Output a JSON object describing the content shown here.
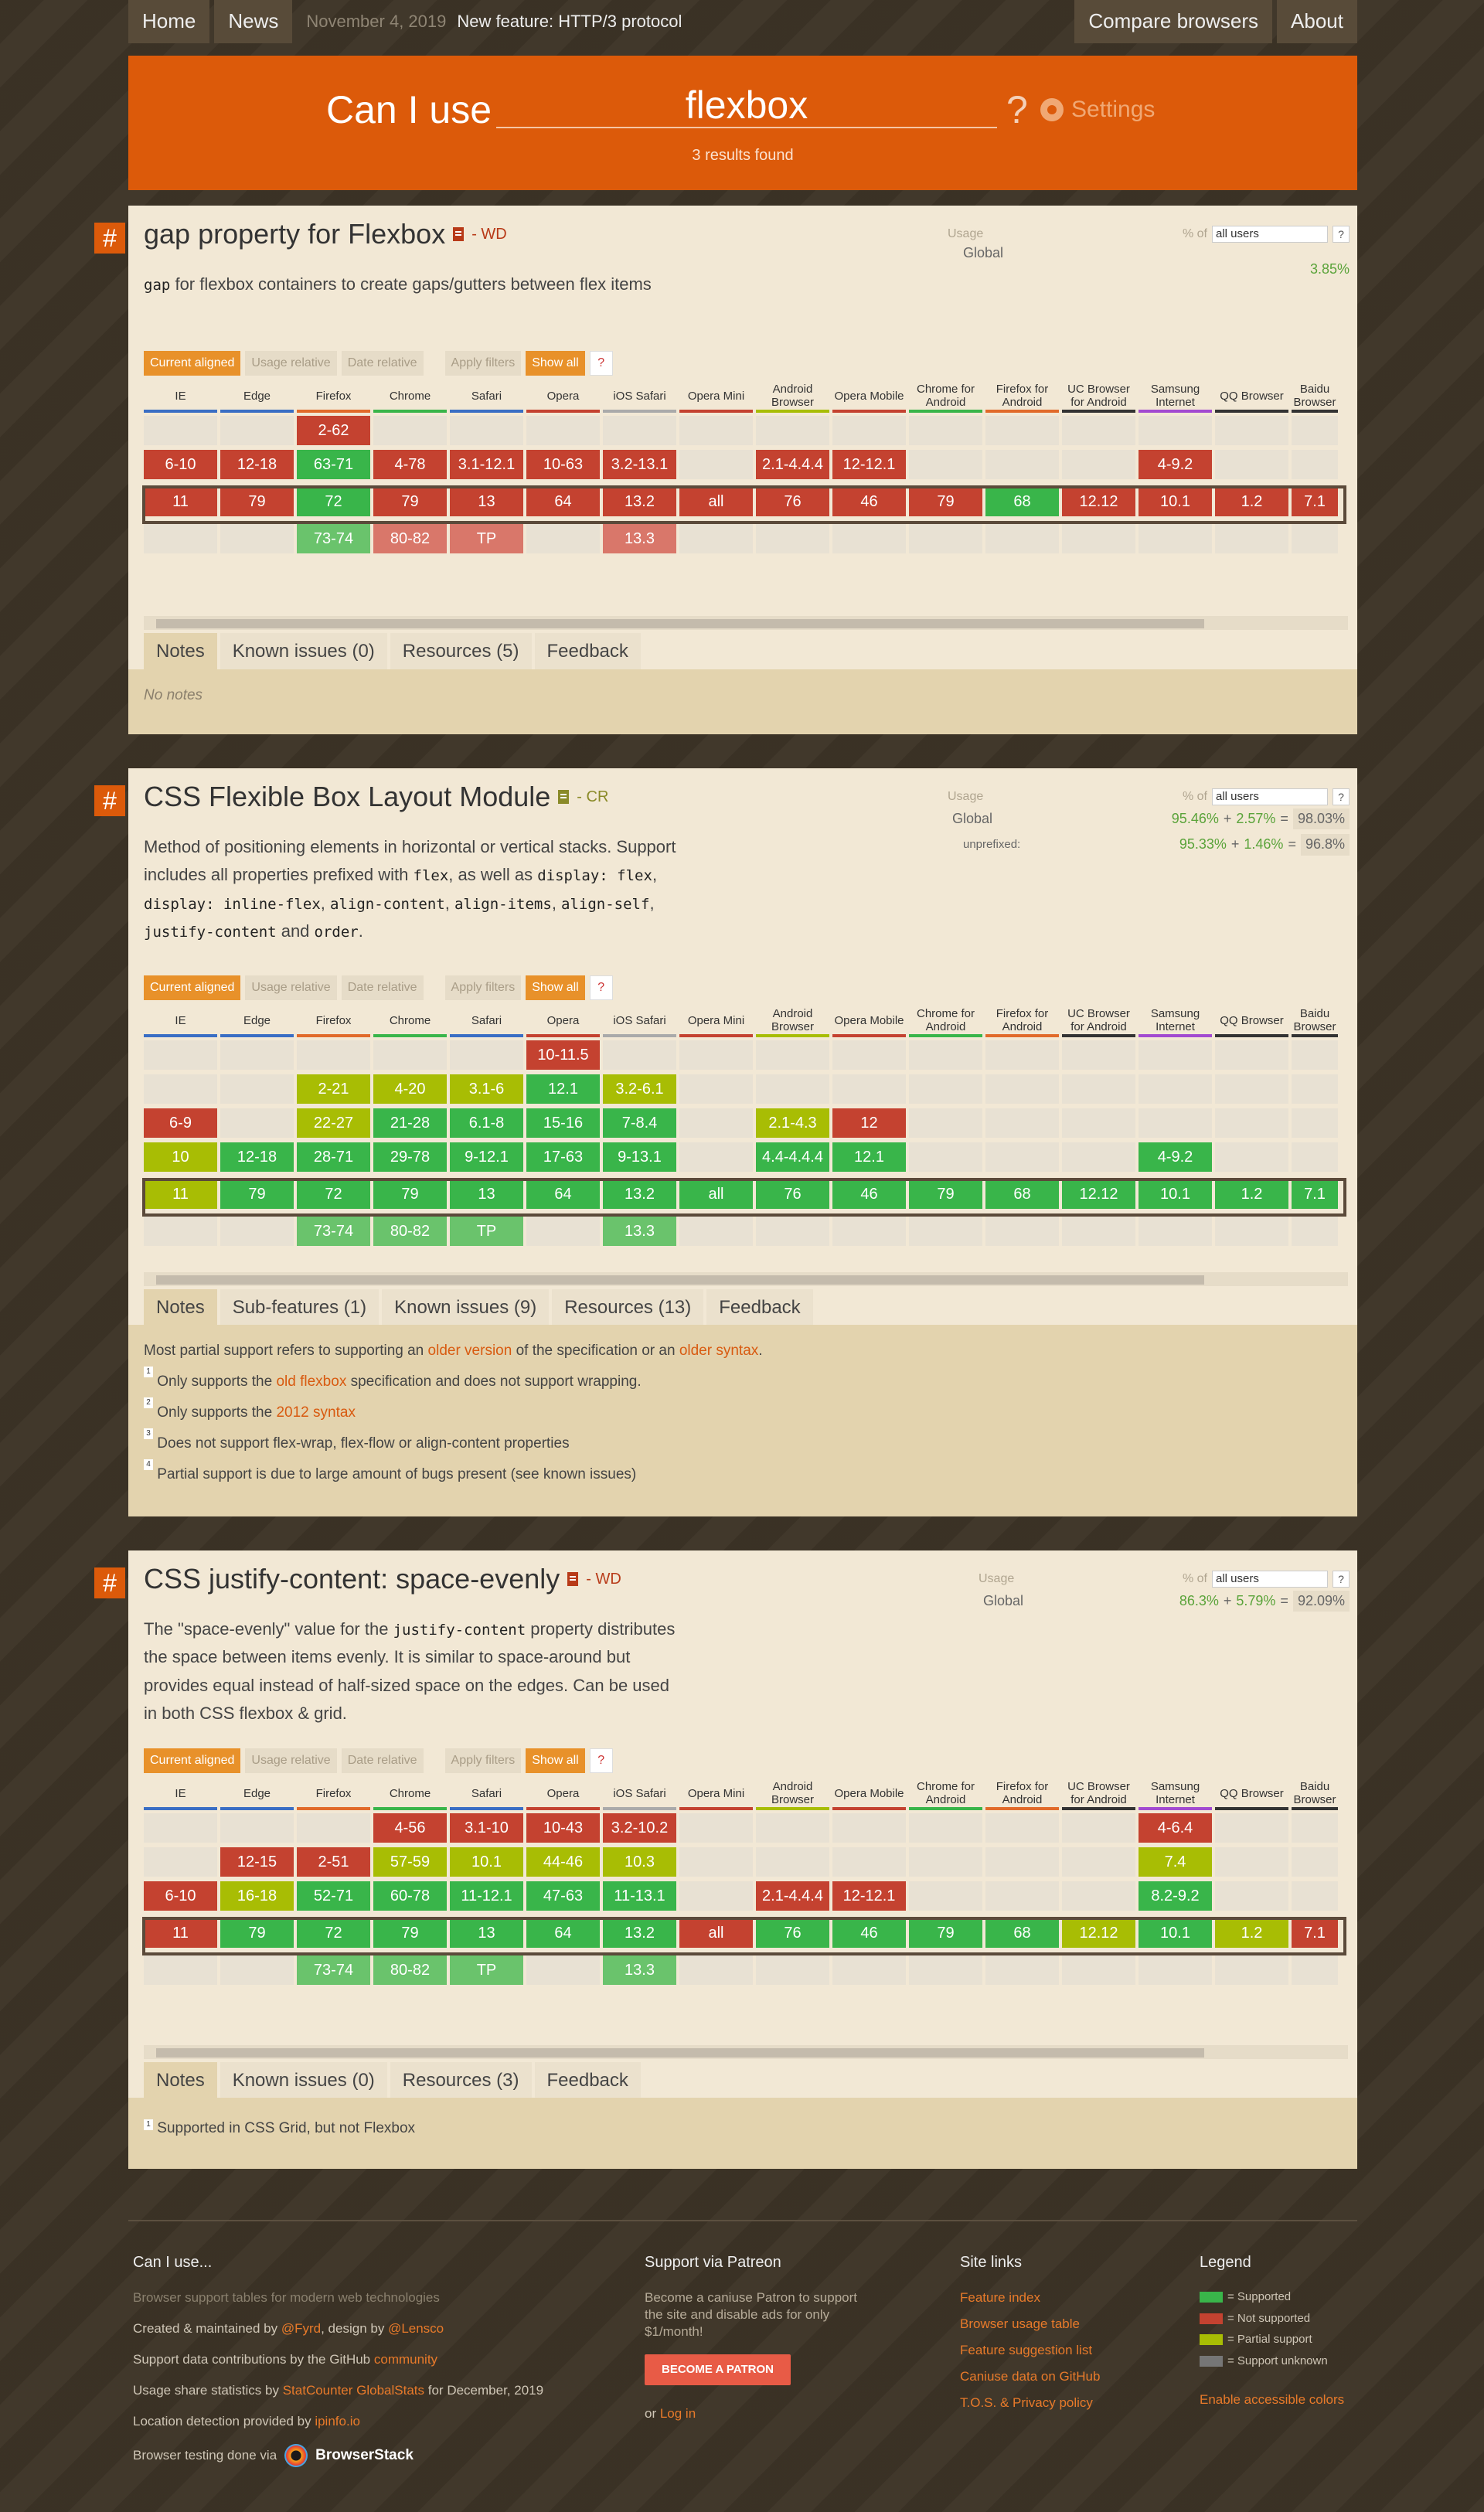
{
  "nav": {
    "home": "Home",
    "news": "News",
    "date": "November 4, 2019",
    "news_text": "New feature: HTTP/3 protocol",
    "compare": "Compare browsers",
    "about": "About"
  },
  "search": {
    "prefix": "Can I use",
    "value": "flexbox",
    "suffix": "?",
    "settings": "Settings",
    "results": "3 results found"
  },
  "ui": {
    "hash": "#",
    "usage": "Usage",
    "pct_of": "% of",
    "users_select": "all users",
    "help": "?",
    "global": "Global",
    "unprefixed": "unprefixed:",
    "plus": "+",
    "equals": "=",
    "filters": {
      "current": "Current aligned",
      "relative": "Usage relative",
      "date": "Date relative",
      "apply": "Apply filters",
      "show_all": "Show all",
      "help": "?"
    }
  },
  "browsers": [
    "IE",
    "Edge",
    "Firefox",
    "Chrome",
    "Safari",
    "Opera",
    "iOS Safari",
    "Opera Mini",
    "Android Browser",
    "Opera Mobile",
    "Chrome for Android",
    "Firefox for Android",
    "UC Browser for Android",
    "Samsung Internet",
    "QQ Browser",
    "Baidu Browser"
  ],
  "colors": {
    "supported": "#39b54a",
    "not_supported": "#c44230",
    "partial": "#a8bd04",
    "unknown": "#767676",
    "accent": "#dc5a0a"
  },
  "features": [
    {
      "title": "gap property for Flexbox",
      "status": "- WD",
      "desc_code": "gap",
      "desc": "for flexbox containers to create gaps/gutters between flex items",
      "global_pct": "3.85%",
      "tabs": [
        "Notes",
        "Known issues (0)",
        "Resources (5)",
        "Feedback"
      ],
      "notes": "No notes"
    },
    {
      "title": "CSS Flexible Box Layout Module",
      "status": "- CR",
      "desc_parts": [
        "Method of positioning elements in horizontal or vertical stacks. Support includes all properties prefixed with ",
        "flex",
        ", as well as ",
        "display: flex",
        ", ",
        "display: inline-flex",
        ", ",
        "align-content",
        ", ",
        "align-items",
        ", ",
        "align-self",
        ", ",
        "justify-content",
        " and ",
        "order",
        "."
      ],
      "global": {
        "full": "95.46%",
        "partial": "2.57%",
        "total": "98.03%"
      },
      "unprefixed": {
        "full": "95.33%",
        "partial": "1.46%",
        "total": "96.8%"
      },
      "tabs": [
        "Notes",
        "Sub-features (1)",
        "Known issues (9)",
        "Resources (13)",
        "Feedback"
      ],
      "notes_main": [
        "Most partial support refers to supporting an ",
        "older version",
        " of the specification or an ",
        "older syntax",
        "."
      ],
      "notes_list": [
        {
          "n": "1",
          "a": "Only supports the ",
          "link": "old flexbox",
          "b": " specification and does not support wrapping."
        },
        {
          "n": "2",
          "a": "Only supports the ",
          "link": "2012 syntax",
          "b": ""
        },
        {
          "n": "3",
          "a": "Does not support flex-wrap, flex-flow or align-content properties",
          "link": "",
          "b": ""
        },
        {
          "n": "4",
          "a": "Partial support is due to large amount of bugs present (see known issues)",
          "link": "",
          "b": ""
        }
      ]
    },
    {
      "title": "CSS justify-content: space-evenly",
      "status": "- WD",
      "desc_parts": [
        "The \"space-evenly\" value for the ",
        "justify-content",
        " property distributes the space between items evenly. It is similar to space-around but provides equal instead of half-sized space on the edges. Can be used in both CSS flexbox & grid."
      ],
      "global": {
        "full": "86.3%",
        "partial": "5.79%",
        "total": "92.09%"
      },
      "tabs": [
        "Notes",
        "Known issues (0)",
        "Resources (3)",
        "Feedback"
      ],
      "note_1": {
        "n": "1",
        "text": "Supported in CSS Grid, but not Flexbox"
      }
    }
  ],
  "grid1": [
    [
      [
        "",
        "e"
      ],
      [
        "6-10",
        "n"
      ],
      [
        "11",
        "n"
      ],
      [
        "",
        "e"
      ]
    ],
    [
      [
        "",
        "e"
      ],
      [
        "12-18",
        "n"
      ],
      [
        "79",
        "n"
      ],
      [
        "",
        "e"
      ]
    ],
    [
      [
        "2-62",
        "n"
      ],
      [
        "63-71",
        "y"
      ],
      [
        "72",
        "y"
      ],
      [
        "73-74",
        "yp"
      ]
    ],
    [
      [
        "",
        "e"
      ],
      [
        "4-78",
        "n"
      ],
      [
        "79",
        "n"
      ],
      [
        "80-82",
        "np"
      ]
    ],
    [
      [
        "",
        "e"
      ],
      [
        "3.1-12.1",
        "n"
      ],
      [
        "13",
        "n"
      ],
      [
        "TP",
        "np"
      ]
    ],
    [
      [
        "",
        "e"
      ],
      [
        "10-63",
        "n"
      ],
      [
        "64",
        "n"
      ],
      [
        "",
        "e"
      ]
    ],
    [
      [
        "",
        "e"
      ],
      [
        "3.2-13.1",
        "n"
      ],
      [
        "13.2",
        "n"
      ],
      [
        "13.3",
        "np"
      ]
    ],
    [
      [
        "",
        "e"
      ],
      [
        "",
        "e"
      ],
      [
        "all",
        "n"
      ],
      [
        "",
        "e"
      ]
    ],
    [
      [
        "",
        "e"
      ],
      [
        "2.1-4.4.4",
        "n"
      ],
      [
        "76",
        "n"
      ],
      [
        "",
        "e"
      ]
    ],
    [
      [
        "",
        "e"
      ],
      [
        "12-12.1",
        "n"
      ],
      [
        "46",
        "n"
      ],
      [
        "",
        "e"
      ]
    ],
    [
      [
        "",
        "e"
      ],
      [
        "",
        "e"
      ],
      [
        "79",
        "n"
      ],
      [
        "",
        "e"
      ]
    ],
    [
      [
        "",
        "e"
      ],
      [
        "",
        "e"
      ],
      [
        "68",
        "y"
      ],
      [
        "",
        "e"
      ]
    ],
    [
      [
        "",
        "e"
      ],
      [
        "",
        "e"
      ],
      [
        "12.12",
        "n"
      ],
      [
        "",
        "e"
      ]
    ],
    [
      [
        "",
        "e"
      ],
      [
        "4-9.2",
        "n"
      ],
      [
        "10.1",
        "n"
      ],
      [
        "",
        "e"
      ]
    ],
    [
      [
        "",
        "e"
      ],
      [
        "",
        "e"
      ],
      [
        "1.2",
        "n"
      ],
      [
        "",
        "e"
      ]
    ],
    [
      [
        "",
        "e"
      ],
      [
        "",
        "e"
      ],
      [
        "7.1",
        "n"
      ],
      [
        "",
        "e"
      ]
    ]
  ],
  "grid2": [
    [
      [
        "",
        "e"
      ],
      [
        "",
        "e"
      ],
      [
        "6-9",
        "n"
      ],
      [
        "10",
        "p"
      ],
      [
        "11",
        "p"
      ],
      [
        "",
        "e"
      ]
    ],
    [
      [
        "",
        "e"
      ],
      [
        "",
        "e"
      ],
      [
        "",
        "e"
      ],
      [
        "12-18",
        "y"
      ],
      [
        "79",
        "y"
      ],
      [
        "",
        "e"
      ]
    ],
    [
      [
        "",
        "e"
      ],
      [
        "2-21",
        "p"
      ],
      [
        "22-27",
        "p"
      ],
      [
        "28-71",
        "y"
      ],
      [
        "72",
        "y"
      ],
      [
        "73-74",
        "yp"
      ]
    ],
    [
      [
        "",
        "e"
      ],
      [
        "4-20",
        "p"
      ],
      [
        "21-28",
        "y"
      ],
      [
        "29-78",
        "y"
      ],
      [
        "79",
        "y"
      ],
      [
        "80-82",
        "yp"
      ]
    ],
    [
      [
        "",
        "e"
      ],
      [
        "3.1-6",
        "p"
      ],
      [
        "6.1-8",
        "y"
      ],
      [
        "9-12.1",
        "y"
      ],
      [
        "13",
        "y"
      ],
      [
        "TP",
        "yp"
      ]
    ],
    [
      [
        "10-11.5",
        "n"
      ],
      [
        "12.1",
        "y"
      ],
      [
        "15-16",
        "y"
      ],
      [
        "17-63",
        "y"
      ],
      [
        "64",
        "y"
      ],
      [
        "",
        "e"
      ]
    ],
    [
      [
        "",
        "e"
      ],
      [
        "3.2-6.1",
        "p"
      ],
      [
        "7-8.4",
        "y"
      ],
      [
        "9-13.1",
        "y"
      ],
      [
        "13.2",
        "y"
      ],
      [
        "13.3",
        "yp"
      ]
    ],
    [
      [
        "",
        "e"
      ],
      [
        "",
        "e"
      ],
      [
        "",
        "e"
      ],
      [
        "",
        "e"
      ],
      [
        "all",
        "y"
      ],
      [
        "",
        "e"
      ]
    ],
    [
      [
        "",
        "e"
      ],
      [
        "",
        "e"
      ],
      [
        "2.1-4.3",
        "p"
      ],
      [
        "4.4-4.4.4",
        "y"
      ],
      [
        "76",
        "y"
      ],
      [
        "",
        "e"
      ]
    ],
    [
      [
        "",
        "e"
      ],
      [
        "",
        "e"
      ],
      [
        "12",
        "n"
      ],
      [
        "12.1",
        "y"
      ],
      [
        "46",
        "y"
      ],
      [
        "",
        "e"
      ]
    ],
    [
      [
        "",
        "e"
      ],
      [
        "",
        "e"
      ],
      [
        "",
        "e"
      ],
      [
        "",
        "e"
      ],
      [
        "79",
        "y"
      ],
      [
        "",
        "e"
      ]
    ],
    [
      [
        "",
        "e"
      ],
      [
        "",
        "e"
      ],
      [
        "",
        "e"
      ],
      [
        "",
        "e"
      ],
      [
        "68",
        "y"
      ],
      [
        "",
        "e"
      ]
    ],
    [
      [
        "",
        "e"
      ],
      [
        "",
        "e"
      ],
      [
        "",
        "e"
      ],
      [
        "",
        "e"
      ],
      [
        "12.12",
        "y"
      ],
      [
        "",
        "e"
      ]
    ],
    [
      [
        "",
        "e"
      ],
      [
        "",
        "e"
      ],
      [
        "",
        "e"
      ],
      [
        "4-9.2",
        "y"
      ],
      [
        "10.1",
        "y"
      ],
      [
        "",
        "e"
      ]
    ],
    [
      [
        "",
        "e"
      ],
      [
        "",
        "e"
      ],
      [
        "",
        "e"
      ],
      [
        "",
        "e"
      ],
      [
        "1.2",
        "y"
      ],
      [
        "",
        "e"
      ]
    ],
    [
      [
        "",
        "e"
      ],
      [
        "",
        "e"
      ],
      [
        "",
        "e"
      ],
      [
        "",
        "e"
      ],
      [
        "7.1",
        "y"
      ],
      [
        "",
        "e"
      ]
    ]
  ],
  "grid3": [
    [
      [
        "",
        "e"
      ],
      [
        "",
        "e"
      ],
      [
        "6-10",
        "n"
      ],
      [
        "11",
        "n"
      ],
      [
        "",
        "e"
      ]
    ],
    [
      [
        "",
        "e"
      ],
      [
        "12-15",
        "n"
      ],
      [
        "16-18",
        "p"
      ],
      [
        "79",
        "y"
      ],
      [
        "",
        "e"
      ]
    ],
    [
      [
        "",
        "e"
      ],
      [
        "2-51",
        "n"
      ],
      [
        "52-71",
        "y"
      ],
      [
        "72",
        "y"
      ],
      [
        "73-74",
        "yp"
      ]
    ],
    [
      [
        "4-56",
        "n"
      ],
      [
        "57-59",
        "p"
      ],
      [
        "60-78",
        "y"
      ],
      [
        "79",
        "y"
      ],
      [
        "80-82",
        "yp"
      ]
    ],
    [
      [
        "3.1-10",
        "n"
      ],
      [
        "10.1",
        "p"
      ],
      [
        "11-12.1",
        "y"
      ],
      [
        "13",
        "y"
      ],
      [
        "TP",
        "yp"
      ]
    ],
    [
      [
        "10-43",
        "n"
      ],
      [
        "44-46",
        "p"
      ],
      [
        "47-63",
        "y"
      ],
      [
        "64",
        "y"
      ],
      [
        "",
        "e"
      ]
    ],
    [
      [
        "3.2-10.2",
        "n"
      ],
      [
        "10.3",
        "p"
      ],
      [
        "11-13.1",
        "y"
      ],
      [
        "13.2",
        "y"
      ],
      [
        "13.3",
        "yp"
      ]
    ],
    [
      [
        "",
        "e"
      ],
      [
        "",
        "e"
      ],
      [
        "",
        "e"
      ],
      [
        "all",
        "n"
      ],
      [
        "",
        "e"
      ]
    ],
    [
      [
        "",
        "e"
      ],
      [
        "",
        "e"
      ],
      [
        "2.1-4.4.4",
        "n"
      ],
      [
        "76",
        "y"
      ],
      [
        "",
        "e"
      ]
    ],
    [
      [
        "",
        "e"
      ],
      [
        "",
        "e"
      ],
      [
        "12-12.1",
        "n"
      ],
      [
        "46",
        "y"
      ],
      [
        "",
        "e"
      ]
    ],
    [
      [
        "",
        "e"
      ],
      [
        "",
        "e"
      ],
      [
        "",
        "e"
      ],
      [
        "79",
        "y"
      ],
      [
        "",
        "e"
      ]
    ],
    [
      [
        "",
        "e"
      ],
      [
        "",
        "e"
      ],
      [
        "",
        "e"
      ],
      [
        "68",
        "y"
      ],
      [
        "",
        "e"
      ]
    ],
    [
      [
        "",
        "e"
      ],
      [
        "",
        "e"
      ],
      [
        "",
        "e"
      ],
      [
        "12.12",
        "p"
      ],
      [
        "",
        "e"
      ]
    ],
    [
      [
        "4-6.4",
        "n"
      ],
      [
        "7.4",
        "p"
      ],
      [
        "8.2-9.2",
        "y"
      ],
      [
        "10.1",
        "y"
      ],
      [
        "",
        "e"
      ]
    ],
    [
      [
        "",
        "e"
      ],
      [
        "",
        "e"
      ],
      [
        "",
        "e"
      ],
      [
        "1.2",
        "p"
      ],
      [
        "",
        "e"
      ]
    ],
    [
      [
        "",
        "e"
      ],
      [
        "",
        "e"
      ],
      [
        "",
        "e"
      ],
      [
        "7.1",
        "n"
      ],
      [
        "",
        "e"
      ]
    ]
  ],
  "footer": {
    "caniuse": {
      "title": "Can I use...",
      "tag": "Browser support tables for modern web technologies",
      "created": "Created & maintained by ",
      "fyrd": "@Fyrd",
      ", design by ": ", design by ",
      "lensco": "@Lensco",
      "support": "Support data contributions by the GitHub ",
      "community": "community",
      "usage_share": "Usage share statistics by ",
      "statcounter": "StatCounter GlobalStats",
      "usage_tail": " for December, 2019",
      "location": "Location detection provided by ",
      "ipinfo": "ipinfo.io",
      "testing": "Browser testing done via",
      "browserstack": "BrowserStack"
    },
    "patreon": {
      "title": "Support via Patreon",
      "text": "Become a caniuse Patron to support the site and disable ads for only $1/month!",
      "button": "BECOME A PATRON",
      "or": "or ",
      "login": "Log in"
    },
    "links": {
      "title": "Site links",
      "items": [
        "Feature index",
        "Browser usage table",
        "Feature suggestion list",
        "Caniuse data on GitHub",
        "T.O.S. & Privacy policy"
      ]
    },
    "legend": {
      "title": "Legend",
      "items": [
        "= Supported",
        "= Not supported",
        "= Partial support",
        "= Support unknown"
      ],
      "accessible": "Enable accessible colors"
    }
  }
}
